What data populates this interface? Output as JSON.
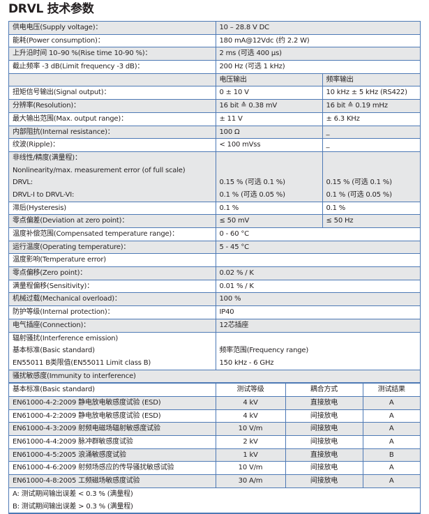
{
  "title": "DRVL 技术参数",
  "spec_rows": [
    {
      "cells": [
        {
          "lines": [
            "供电电压(Supply voltage)："
          ]
        },
        {
          "lines": [
            "10 – 28.8 V DC"
          ],
          "span": 2
        }
      ]
    },
    {
      "cells": [
        {
          "lines": [
            "能耗(Power consumption)："
          ]
        },
        {
          "lines": [
            "180 mA@12Vdc (约 2.2 W)"
          ],
          "span": 2
        }
      ]
    },
    {
      "cells": [
        {
          "lines": [
            "上升沿时间 10–90 %(Rise time 10-90 %)："
          ]
        },
        {
          "lines": [
            "2 ms      (可选 400 µs)"
          ],
          "span": 2
        }
      ]
    },
    {
      "cells": [
        {
          "lines": [
            "截止频率 -3 dB(Limit frequency -3 dB)："
          ]
        },
        {
          "lines": [
            "200 Hz  (可选 1 kHz)"
          ],
          "span": 2
        }
      ]
    },
    {
      "cells": [
        {
          "lines": [
            ""
          ]
        },
        {
          "lines": [
            "电压输出"
          ]
        },
        {
          "lines": [
            "频率输出"
          ]
        }
      ]
    },
    {
      "cells": [
        {
          "lines": [
            "扭矩信号输出(Signal output)："
          ]
        },
        {
          "lines": [
            "0 ± 10 V"
          ]
        },
        {
          "lines": [
            "10 kHz ± 5 kHz (RS422)"
          ]
        }
      ]
    },
    {
      "cells": [
        {
          "lines": [
            "分辨率(Resolution)："
          ]
        },
        {
          "lines": [
            "16 bit ≙ 0.38 mV"
          ]
        },
        {
          "lines": [
            "16 bit ≙ 0.19 mHz"
          ]
        }
      ]
    },
    {
      "cells": [
        {
          "lines": [
            "最大输出范围(Max. output range)："
          ]
        },
        {
          "lines": [
            "± 11 V"
          ]
        },
        {
          "lines": [
            "± 6.3 KHz"
          ]
        }
      ]
    },
    {
      "cells": [
        {
          "lines": [
            "内部阻抗(Internal resistance)："
          ]
        },
        {
          "lines": [
            "100 Ω"
          ]
        },
        {
          "lines": [
            "_"
          ]
        }
      ]
    },
    {
      "cells": [
        {
          "lines": [
            "纹波(Ripple)："
          ]
        },
        {
          "lines": [
            "< 100 mVss"
          ]
        },
        {
          "lines": [
            "_"
          ]
        }
      ]
    },
    {
      "cells": [
        {
          "lines": [
            "非线性/精度(满量程)：",
            "Nonlinearity/max. measurement error (of full scale)",
            "DRVL:",
            "DRVL-I to DRVL-VI:"
          ]
        },
        {
          "lines": [
            "",
            "",
            "0.15 %  (可选 0.1 %)",
            "0.1 %   (可选 0.05 %)"
          ]
        },
        {
          "lines": [
            "",
            "",
            "0.15 %  (可选 0.1 %)",
            "0.1 %   (可选 0.05 %)"
          ]
        }
      ]
    },
    {
      "cells": [
        {
          "lines": [
            "滞后(Hysteresis)"
          ]
        },
        {
          "lines": [
            "0.1 %"
          ]
        },
        {
          "lines": [
            "0.1 %"
          ]
        }
      ]
    },
    {
      "cells": [
        {
          "lines": [
            "零点偏差(Deviation at zero point)："
          ]
        },
        {
          "lines": [
            "≤ 50 mV"
          ]
        },
        {
          "lines": [
            "≤ 50 Hz"
          ]
        }
      ]
    },
    {
      "cells": [
        {
          "lines": [
            "温度补偿范围(Compensated temperature range)："
          ]
        },
        {
          "lines": [
            "0 - 60 °C"
          ],
          "span": 2
        }
      ]
    },
    {
      "cells": [
        {
          "lines": [
            "运行温度(Operating temperature)："
          ]
        },
        {
          "lines": [
            "5 - 45 °C"
          ],
          "span": 2
        }
      ]
    },
    {
      "cells": [
        {
          "lines": [
            "温度影响(Temperature error)"
          ]
        },
        {
          "lines": [
            ""
          ],
          "span": 2
        }
      ]
    },
    {
      "cells": [
        {
          "lines": [
            "零点偏移(Zero point)："
          ]
        },
        {
          "lines": [
            "0.02 % / K"
          ],
          "span": 2
        }
      ]
    },
    {
      "cells": [
        {
          "lines": [
            "满量程偏移(Sensitivity)："
          ]
        },
        {
          "lines": [
            "0.01 % / K"
          ],
          "span": 2
        }
      ]
    },
    {
      "cells": [
        {
          "lines": [
            "机械过载(Mechanical overload)："
          ]
        },
        {
          "lines": [
            "100 %"
          ],
          "span": 2
        }
      ]
    },
    {
      "cells": [
        {
          "lines": [
            "防护等级(Internal protection)："
          ]
        },
        {
          "lines": [
            "IP40"
          ],
          "span": 2
        }
      ]
    },
    {
      "cells": [
        {
          "lines": [
            "电气插座(Connection)："
          ]
        },
        {
          "lines": [
            "12芯插座"
          ],
          "span": 2
        }
      ]
    },
    {
      "cells": [
        {
          "lines": [
            "辐射骚扰(Interference emission)",
            "基本标准(Basic standard)",
            "EN55011 B类限值(EN55011 Limit class B)"
          ]
        },
        {
          "lines": [
            "",
            "频率范围(Frequency range)",
            "150 kHz - 6 GHz"
          ],
          "span": 2
        }
      ]
    },
    {
      "cells": [
        {
          "lines": [
            "骚扰敏感度(Immunity to interference)"
          ],
          "span": 3
        }
      ]
    }
  ],
  "immunity_table": {
    "headers": [
      "基本标准(Basic standard)",
      "测试等级",
      "耦合方式",
      "测试结果"
    ],
    "rows": [
      [
        "EN61000-4-2:2009 静电放电敏感度试验 (ESD)",
        "4 kV",
        "直接放电",
        "A"
      ],
      [
        "EN61000-4-2:2009 静电放电敏感度试验 (ESD)",
        "4 kV",
        "间接放电",
        "A"
      ],
      [
        "EN61000-4-3:2009 射频电磁场辐射敏感度试验",
        "10 V/m",
        "间接放电",
        "A"
      ],
      [
        "EN61000-4-4:2009 脉冲群敏感度试验",
        "2 kV",
        "间接放电",
        "A"
      ],
      [
        "EN61000-4-5:2005 浪涌敏感度试验",
        "1 kV",
        "直接放电",
        "B"
      ],
      [
        "EN61000-4-6:2009 射频场感应的传导骚扰敏感试验",
        "10 V/m",
        "间接放电",
        "A"
      ],
      [
        "EN61000-4-8:2005 工频磁场敏感度试验",
        "30 A/m",
        "间接放电",
        "A"
      ]
    ],
    "footnotes": [
      "A: 测试期间输出误差 < 0.3 % (满量程)",
      "B: 测试期间输出误差 > 0.3 % (满量程)"
    ]
  },
  "colors": {
    "border": "#4d79b5",
    "shade": "#e6e7e8"
  }
}
